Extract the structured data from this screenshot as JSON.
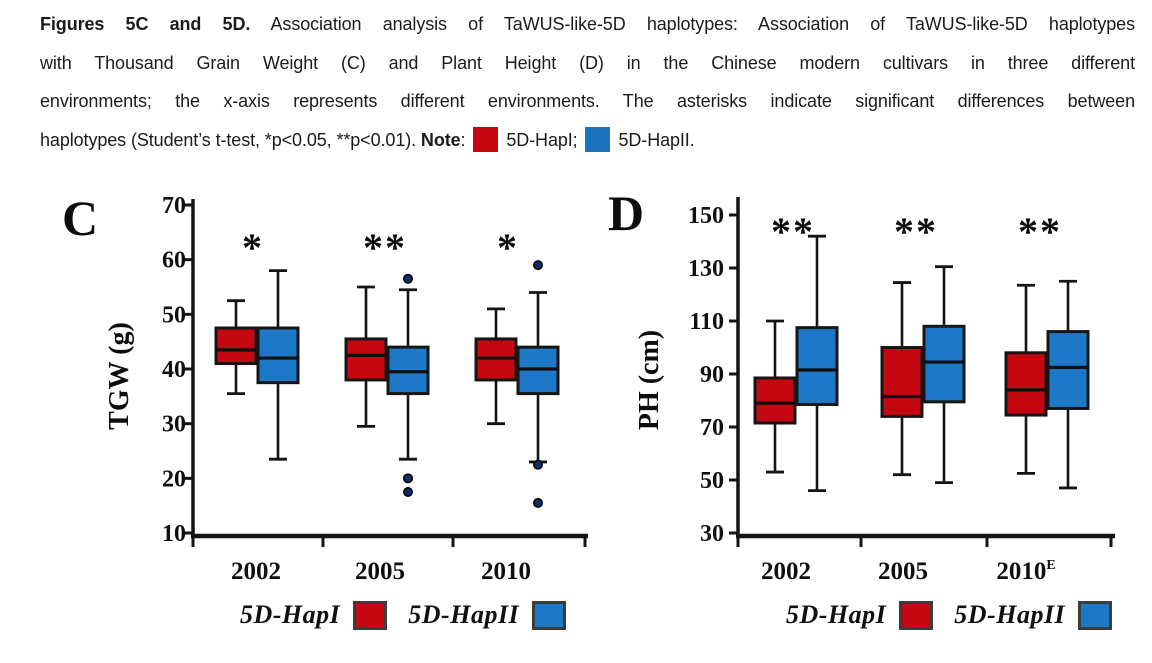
{
  "figure": {
    "caption": {
      "lines": [
        {
          "justify": true,
          "segments": [
            {
              "text": "Figures 5C and 5D.",
              "bold": true
            },
            {
              "text": " Association analysis of TaWUS-like-5D haplotypes: Association of TaWUS-like-5D haplotypes"
            }
          ]
        },
        {
          "justify": true,
          "segments": [
            {
              "text": "with Thousand Grain Weight (C) and Plant Height (D) in the Chinese modern cultivars in three different"
            }
          ]
        },
        {
          "justify": true,
          "segments": [
            {
              "text": "environments; the x-axis represents different environments. The asterisks indicate significant differences between"
            }
          ]
        },
        {
          "justify": false,
          "segments": [
            {
              "text": "haplotypes (Student’s t-test, *p<0.05, **p<0.01). "
            },
            {
              "text": "Note",
              "bold": true
            },
            {
              "text": ": "
            },
            {
              "swatch": "hapI",
              "color": "#c40711"
            },
            {
              "text": "5D-HapI; "
            },
            {
              "swatch": "hapII",
              "color": "#1c75bc"
            },
            {
              "text": "5D-HapII."
            }
          ]
        }
      ]
    }
  },
  "chart_data": [
    {
      "type": "boxplot",
      "panel": "C",
      "ylabel": "TGW (g)",
      "ylim": [
        10,
        70
      ],
      "yticks": [
        10,
        20,
        30,
        40,
        50,
        60,
        70
      ],
      "categories": [
        "2002",
        "2005",
        "2010"
      ],
      "category_superscripts": [
        "",
        "",
        ""
      ],
      "significance": [
        "*",
        "**",
        "*"
      ],
      "series": [
        {
          "name": "5D-HapI",
          "color": "#c40711",
          "boxes": [
            {
              "low": 35.5,
              "q1": 41,
              "median": 43.5,
              "q3": 47.5,
              "high": 52.5,
              "outliers": []
            },
            {
              "low": 29.5,
              "q1": 38,
              "median": 42.5,
              "q3": 45.5,
              "high": 55,
              "outliers": []
            },
            {
              "low": 30,
              "q1": 38,
              "median": 42,
              "q3": 45.5,
              "high": 51,
              "outliers": []
            }
          ]
        },
        {
          "name": "5D-HapII",
          "color": "#1e78c8",
          "boxes": [
            {
              "low": 23.5,
              "q1": 37.5,
              "median": 42,
              "q3": 47.5,
              "high": 58,
              "outliers": []
            },
            {
              "low": 23.5,
              "q1": 35.5,
              "median": 39.5,
              "q3": 44,
              "high": 54.5,
              "outliers": [
                56.5,
                20,
                17.5
              ]
            },
            {
              "low": 23,
              "q1": 35.5,
              "median": 40,
              "q3": 44,
              "high": 54,
              "outliers": [
                59,
                22.5,
                15.5
              ]
            }
          ]
        }
      ],
      "legend": [
        {
          "label": "5D-HapI",
          "color": "#c40711"
        },
        {
          "label": "5D-HapII",
          "color": "#1e78c8"
        }
      ]
    },
    {
      "type": "boxplot",
      "panel": "D",
      "ylabel": "PH (cm)",
      "ylim": [
        30,
        150
      ],
      "yticks": [
        30,
        50,
        70,
        90,
        110,
        130,
        150
      ],
      "categories": [
        "2002",
        "2005",
        "2010"
      ],
      "category_superscripts": [
        "",
        "",
        "E"
      ],
      "significance": [
        "**",
        "**",
        "**"
      ],
      "series": [
        {
          "name": "5D-HapI",
          "color": "#c40711",
          "boxes": [
            {
              "low": 53,
              "q1": 71.5,
              "median": 79,
              "q3": 88.5,
              "high": 110,
              "outliers": []
            },
            {
              "low": 52,
              "q1": 74,
              "median": 81.5,
              "q3": 100,
              "high": 124.5,
              "outliers": []
            },
            {
              "low": 52.5,
              "q1": 74.5,
              "median": 84,
              "q3": 98,
              "high": 123.5,
              "outliers": []
            }
          ]
        },
        {
          "name": "5D-HapII",
          "color": "#1e78c8",
          "boxes": [
            {
              "low": 46,
              "q1": 78.5,
              "median": 91.5,
              "q3": 107.5,
              "high": 142,
              "outliers": []
            },
            {
              "low": 49,
              "q1": 79.5,
              "median": 94.5,
              "q3": 108,
              "high": 130.5,
              "outliers": []
            },
            {
              "low": 47,
              "q1": 77,
              "median": 92.5,
              "q3": 106,
              "high": 125,
              "outliers": []
            }
          ]
        }
      ],
      "legend": [
        {
          "label": "5D-HapI",
          "color": "#c40711"
        },
        {
          "label": "5D-HapII",
          "color": "#1e78c8"
        }
      ]
    }
  ]
}
